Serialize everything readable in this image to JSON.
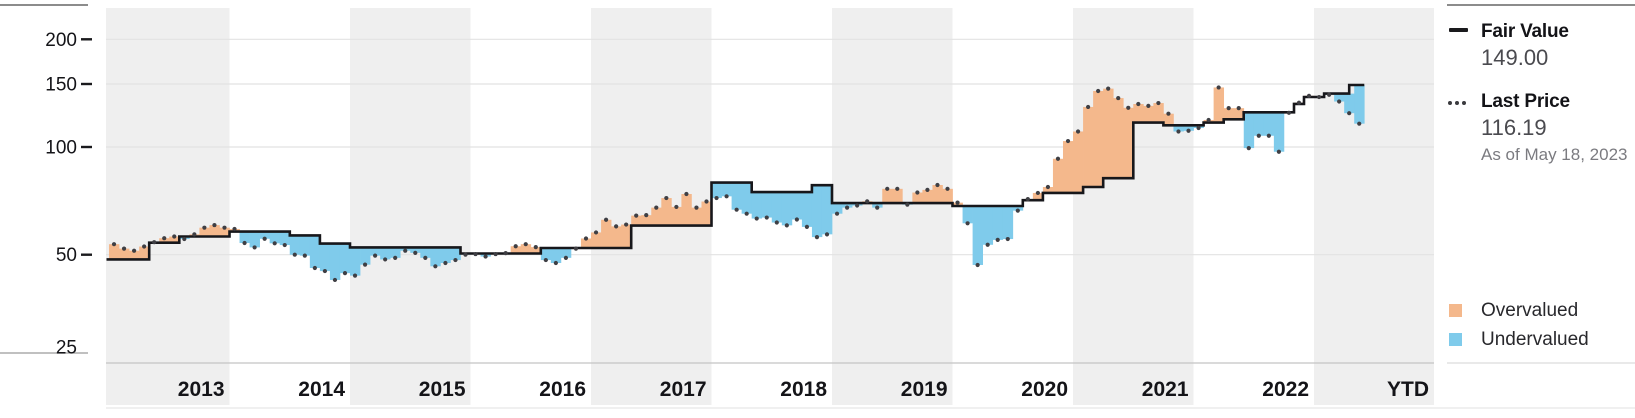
{
  "legend": {
    "fair_value_label": "Fair Value",
    "fair_value": "149.00",
    "last_price_label": "Last Price",
    "last_price": "116.19",
    "as_of": "As of May 18, 2023",
    "overvalued_label": "Overvalued",
    "undervalued_label": "Undervalued"
  },
  "y_axis": {
    "ticks": [
      {
        "label": "200",
        "value": 200,
        "has_tick": true
      },
      {
        "label": "150",
        "value": 150,
        "has_tick": true
      },
      {
        "label": "100",
        "value": 100,
        "has_tick": true
      },
      {
        "label": "50",
        "value": 50,
        "has_tick": true
      },
      {
        "label": "25",
        "value": 25,
        "has_tick": false
      }
    ]
  },
  "x_axis": {
    "year_labels": [
      "2013",
      "2014",
      "2015",
      "2016",
      "2017",
      "2018",
      "2019",
      "2020",
      "2021",
      "2022",
      "YTD"
    ]
  },
  "colors": {
    "overvalued": "#F4B88C",
    "undervalued": "#7FCBEB",
    "fair_value_line": "#17171B",
    "price_dot": "#3F3F44",
    "band_gray": "#EFEFEF",
    "gridline": "#E2E2E2",
    "axis_line": "#C4C4C4",
    "panel_rule_dark": "#8C8C8C",
    "panel_rule_light": "#DCDCDC",
    "label_dark": "#141418"
  },
  "chart_data": {
    "type": "area",
    "description": "Stepped fair value estimate vs monthly last price, overvalued/undervalued shading, log price scale",
    "x_start": "2013-01",
    "x_end": "2023-05",
    "y_scale": "log",
    "y_ticks": [
      200,
      150,
      100,
      50,
      25
    ],
    "ylim": [
      25,
      230
    ],
    "grid": true,
    "legend_position": "right",
    "year_ticks": [
      "2013",
      "2014",
      "2015",
      "2016",
      "2017",
      "2018",
      "2019",
      "2020",
      "2021",
      "2022",
      "YTD"
    ],
    "monthly_last_price": [
      53.5,
      52.0,
      51.3,
      52.7,
      54.2,
      55.6,
      56.2,
      55.3,
      57.0,
      59.5,
      60.5,
      59.5,
      59.0,
      53.9,
      52.4,
      55.4,
      53.8,
      53.2,
      50.0,
      49.7,
      45.9,
      45.0,
      42.5,
      44.4,
      43.7,
      46.9,
      49.7,
      48.5,
      49.0,
      51.3,
      50.6,
      49.0,
      46.4,
      47.4,
      48.3,
      50.0,
      50.2,
      49.4,
      50.2,
      50.5,
      52.8,
      53.5,
      52.5,
      48.3,
      47.4,
      49.0,
      52.0,
      55.5,
      57.7,
      62.6,
      60.0,
      60.7,
      64.3,
      64.5,
      67.7,
      72.0,
      68.0,
      73.9,
      67.7,
      70.4,
      72.0,
      72.8,
      66.8,
      65.1,
      63.1,
      63.5,
      61.5,
      60.4,
      62.7,
      59.8,
      56.0,
      57.0,
      65.1,
      67.7,
      68.6,
      70.5,
      67.7,
      76.4,
      76.4,
      69.0,
      74.6,
      75.9,
      78.3,
      76.4,
      69.9,
      61.2,
      46.8,
      53.3,
      55.0,
      55.3,
      66.4,
      71.5,
      74.4,
      77.3,
      92.7,
      103.9,
      110.5,
      129.4,
      143.4,
      145.6,
      137.0,
      128.7,
      131.9,
      130.3,
      132.7,
      123.9,
      110.5,
      111.0,
      113.0,
      119.0,
      146.7,
      128.4,
      128.4,
      99.3,
      107.5,
      107.5,
      97.0,
      124.6,
      133.0,
      139.0,
      137.9,
      140.0,
      134.0,
      124.3,
      116.19
    ],
    "fair_value_steps": [
      {
        "from_month": 0,
        "value": 48.5
      },
      {
        "from_month": 4,
        "value": 54.0
      },
      {
        "from_month": 7,
        "value": 56.2
      },
      {
        "from_month": 12,
        "value": 58.0
      },
      {
        "from_month": 18,
        "value": 56.6
      },
      {
        "from_month": 21,
        "value": 53.7
      },
      {
        "from_month": 24,
        "value": 52.4
      },
      {
        "from_month": 35,
        "value": 50.4
      },
      {
        "from_month": 43,
        "value": 52.2
      },
      {
        "from_month": 52,
        "value": 60.3
      },
      {
        "from_month": 60,
        "value": 79.5
      },
      {
        "from_month": 64,
        "value": 74.8
      },
      {
        "from_month": 70,
        "value": 78.2
      },
      {
        "from_month": 72,
        "value": 69.7
      },
      {
        "from_month": 84,
        "value": 68.4
      },
      {
        "from_month": 91,
        "value": 71.0
      },
      {
        "from_month": 93,
        "value": 74.4
      },
      {
        "from_month": 97,
        "value": 77.3
      },
      {
        "from_month": 99,
        "value": 81.8
      },
      {
        "from_month": 102,
        "value": 117.0
      },
      {
        "from_month": 105,
        "value": 115.0
      },
      {
        "from_month": 109,
        "value": 117.0
      },
      {
        "from_month": 111,
        "value": 119.5
      },
      {
        "from_month": 113,
        "value": 125.0
      },
      {
        "from_month": 118,
        "value": 132.0
      },
      {
        "from_month": 119,
        "value": 138.0
      },
      {
        "from_month": 121,
        "value": 141.0
      },
      {
        "from_month": 123.5,
        "value": 149.0
      }
    ],
    "last_point": {
      "date": "2023-05-18",
      "last_price": 116.19,
      "fair_value": 149.0
    }
  }
}
